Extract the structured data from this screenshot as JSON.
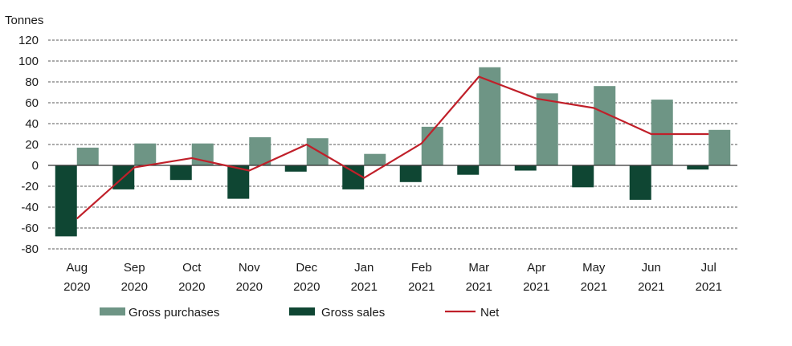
{
  "chart_data": {
    "type": "bar",
    "ylabel": "Tonnes",
    "ylim": [
      -80,
      120
    ],
    "yticks": [
      120,
      100,
      80,
      60,
      40,
      20,
      0,
      -20,
      -40,
      -60,
      -80
    ],
    "grid": true,
    "legend_position": "bottom",
    "categories": [
      [
        "Aug",
        "2020"
      ],
      [
        "Sep",
        "2020"
      ],
      [
        "Oct",
        "2020"
      ],
      [
        "Nov",
        "2020"
      ],
      [
        "Dec",
        "2020"
      ],
      [
        "Jan",
        "2021"
      ],
      [
        "Feb",
        "2021"
      ],
      [
        "Mar",
        "2021"
      ],
      [
        "Apr",
        "2021"
      ],
      [
        "May",
        "2021"
      ],
      [
        "Jun",
        "2021"
      ],
      [
        "Jul",
        "2021"
      ]
    ],
    "series": [
      {
        "name": "Gross purchases",
        "type": "bar",
        "color": "#6e9585",
        "values": [
          17,
          21,
          21,
          27,
          26,
          11,
          37,
          94,
          69,
          76,
          63,
          34
        ]
      },
      {
        "name": "Gross sales",
        "type": "bar",
        "color": "#0f4633",
        "values": [
          -68,
          -23,
          -14,
          -32,
          -6,
          -23,
          -16,
          -9,
          -5,
          -21,
          -33,
          -4
        ]
      },
      {
        "name": "Net",
        "type": "line",
        "color": "#c0202a",
        "values": [
          -51,
          -2,
          7,
          -5,
          20,
          -12,
          21,
          85,
          64,
          55,
          30,
          30
        ]
      }
    ]
  }
}
